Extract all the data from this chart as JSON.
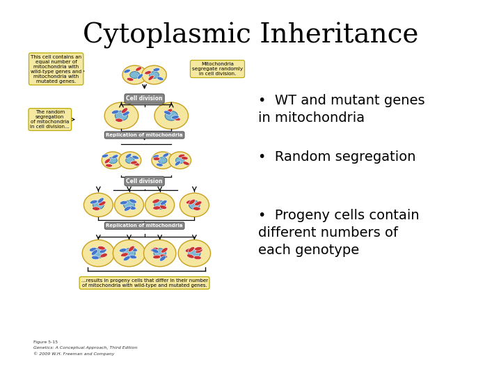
{
  "title": "Cytoplasmic Inheritance",
  "title_fontsize": 28,
  "title_font": "serif",
  "bullet_points": [
    "WT and mutant genes\nin mitochondria",
    "Random segregation",
    "Progeny cells contain\ndifferent numbers of\neach genotype"
  ],
  "bullet_fontsize": 14,
  "bullet_font": "sans-serif",
  "background_color": "#ffffff",
  "text_color": "#000000",
  "figure_caption_lines": [
    "Figure 5-15",
    "Genetics: A Conceptual Approach, Third Edition",
    "© 2009 W.H. Freeman and Company"
  ],
  "diagram_bottom_box": "...results in progeny cells that differ in their number\nof mitochondria with wild-type and mutated genes.",
  "label_cell_division_1": "Cell division",
  "label_replic_1": "Replication of mitochondria",
  "label_cell_division_2": "Cell division",
  "label_replic_2": "Replication of mitochondria",
  "label_top_left": "This cell contains an\nequal number of\nmitochondria with\nwild-type genes and\nmitochondria with\nmutated genes.",
  "label_top_right": "Mitochondria\nsegregate randomly\nin cell division.",
  "label_mid_left": "The random\nsegregation\nof mitochondria\nin cell division...",
  "cell_fill": "#f5e6a0",
  "cell_edge": "#c8a020",
  "mito_wt_fill": "#4477cc",
  "mito_mut_fill": "#cc3333",
  "nucleus_fill": "#7ab8d4",
  "label_box_fill": "#f5e8a0",
  "label_box_edge": "#bbaa00",
  "step_box_fill": "#888888",
  "step_box_edge": "#555555"
}
